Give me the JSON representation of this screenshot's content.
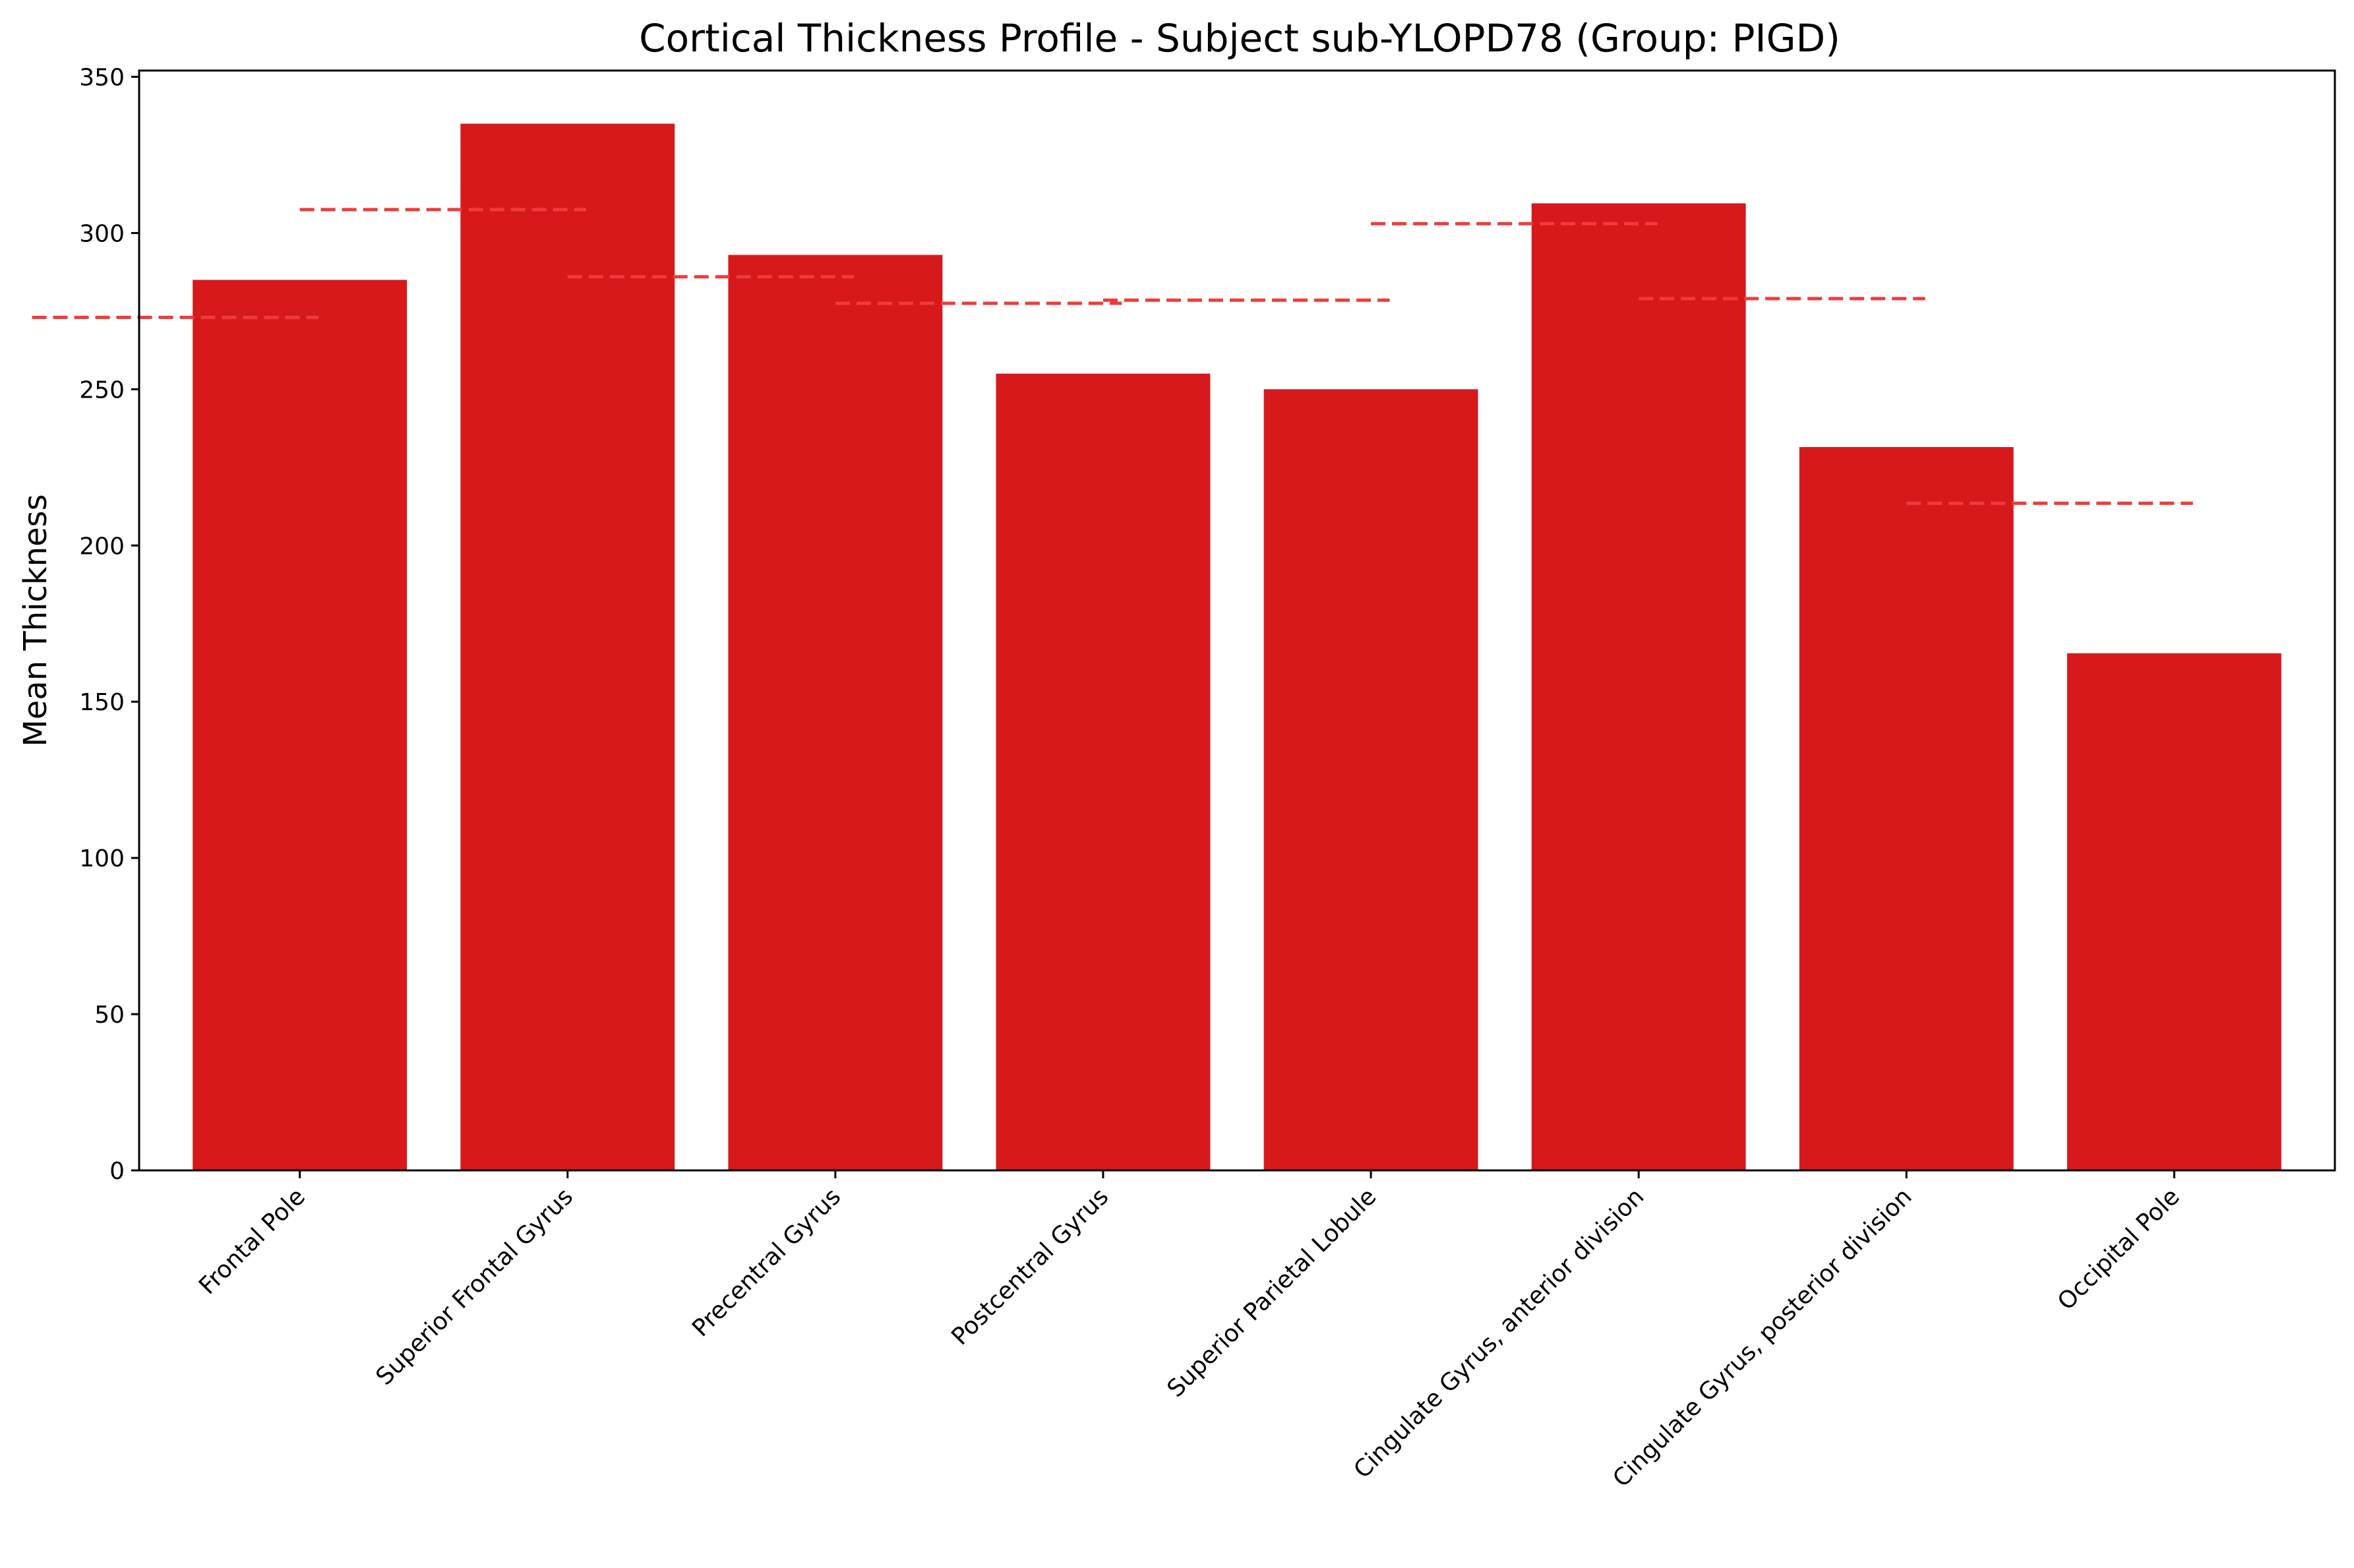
{
  "chart_data": {
    "type": "bar",
    "title": "Cortical Thickness Profile - Subject sub-YLOPD78 (Group: PIGD)",
    "xlabel": "",
    "ylabel": "Mean Thickness",
    "ylim": [
      0,
      352
    ],
    "yticks": [
      0,
      50,
      100,
      150,
      200,
      250,
      300,
      350
    ],
    "grid": false,
    "categories": [
      "Frontal Pole",
      "Superior Frontal Gyrus",
      "Precentral Gyrus",
      "Postcentral Gyrus",
      "Superior Parietal Lobule",
      "Cingulate Gyrus, anterior division",
      "Cingulate Gyrus, posterior division",
      "Occipital Pole"
    ],
    "series": [
      {
        "values": [
          285,
          335,
          293,
          255,
          250,
          309.5,
          231.5,
          165.5
        ],
        "color": "#d7191c"
      }
    ],
    "reference_lines": {
      "style": "dashed",
      "color": "#f03b3b",
      "values": [
        273,
        307.5,
        286,
        277.5,
        278.5,
        303,
        279,
        213.5
      ]
    }
  }
}
